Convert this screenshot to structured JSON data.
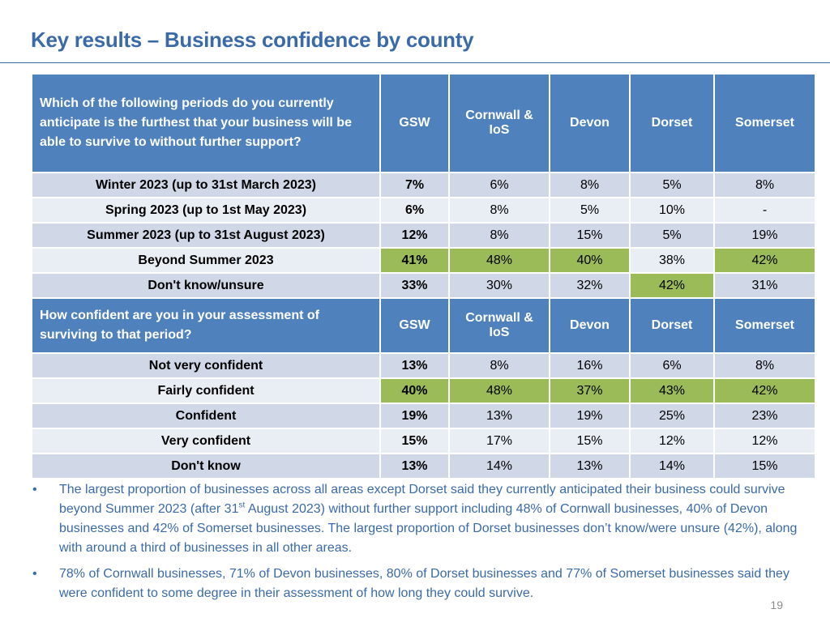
{
  "title": "Key results – Business confidence by county",
  "columns": [
    "GSW",
    "Cornwall & IoS",
    "Devon",
    "Dorset",
    "Somerset"
  ],
  "section1": {
    "question": "Which of the following periods do you currently anticipate is the furthest that your business will be able to survive to without further support?",
    "rows": [
      {
        "label": "Winter 2023 (up to 31st March 2023)",
        "values": [
          "7%",
          "6%",
          "8%",
          "5%",
          "8%"
        ]
      },
      {
        "label": "Spring 2023 (up to 1st May 2023)",
        "values": [
          "6%",
          "8%",
          "5%",
          "10%",
          "-"
        ]
      },
      {
        "label": "Summer 2023 (up to 31st August 2023)",
        "values": [
          "12%",
          "8%",
          "15%",
          "5%",
          "19%"
        ]
      },
      {
        "label": "Beyond Summer 2023",
        "values": [
          "41%",
          "48%",
          "40%",
          "38%",
          "42%"
        ]
      },
      {
        "label": "Don't know/unsure",
        "values": [
          "33%",
          "30%",
          "32%",
          "42%",
          "31%"
        ]
      }
    ]
  },
  "section2": {
    "question": "How confident are you in your assessment of surviving to that period?",
    "rows": [
      {
        "label": "Not very confident",
        "values": [
          "13%",
          "8%",
          "16%",
          "6%",
          "8%"
        ]
      },
      {
        "label": "Fairly confident",
        "values": [
          "40%",
          "48%",
          "37%",
          "43%",
          "42%"
        ]
      },
      {
        "label": "Confident",
        "values": [
          "19%",
          "13%",
          "19%",
          "25%",
          "23%"
        ]
      },
      {
        "label": "Very confident",
        "values": [
          "15%",
          "17%",
          "15%",
          "12%",
          "12%"
        ]
      },
      {
        "label": "Don't know",
        "values": [
          "13%",
          "14%",
          "13%",
          "14%",
          "15%"
        ]
      }
    ]
  },
  "notes": [
    {
      "bullet": "•",
      "part1": "The largest proportion of businesses across all areas except Dorset said they currently anticipated their business could survive beyond Summer 2023 (after 31",
      "sup": "st",
      "part2": " August 2023) without further support including 48% of Cornwall businesses, 40% of Devon businesses and 42% of Somerset businesses.  The largest proportion of Dorset businesses don’t know/were unsure (42%), along with around a third of businesses in all other areas."
    },
    {
      "bullet": "•",
      "text": "78% of Cornwall businesses, 71% of Devon businesses, 80% of Dorset businesses and 77% of Somerset businesses said they were confident to some degree in their assessment of how long they could survive."
    }
  ],
  "page_number": "19",
  "colors": {
    "title": "#3a6aa8",
    "header_fill": "#4f81bd",
    "row_dark": "#d0d8e8",
    "row_light": "#e9edf4",
    "highlight": "#9bbb59"
  }
}
